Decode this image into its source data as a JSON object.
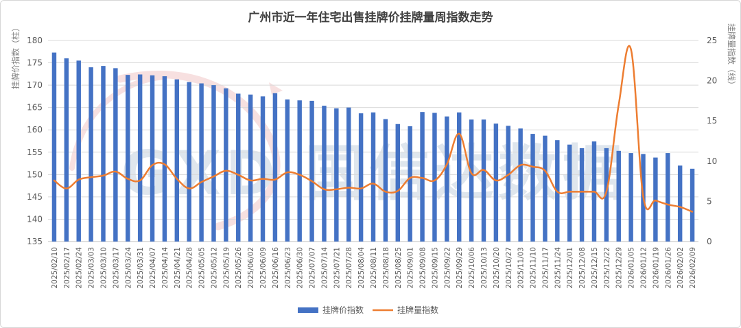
{
  "chart_data": {
    "type": "bar+line",
    "title": "广州市近一年住宅出售挂牌价挂牌量周指数走势",
    "y_left_label": "挂牌价指数（柱）",
    "y_right_label": "挂牌量指数（线）",
    "y_left_range": [
      135,
      180
    ],
    "y_left_ticks": [
      135,
      140,
      145,
      150,
      155,
      160,
      165,
      170,
      175,
      180
    ],
    "y_right_range": [
      0,
      25
    ],
    "y_right_ticks": [
      0,
      5,
      10,
      15,
      20,
      25
    ],
    "categories": [
      "2025/02/10",
      "2025/02/17",
      "2025/02/24",
      "2025/03/03",
      "2025/03/10",
      "2025/03/17",
      "2025/03/24",
      "2025/03/31",
      "2025/04/07",
      "2025/04/14",
      "2025/04/21",
      "2025/04/28",
      "2025/05/05",
      "2025/05/12",
      "2025/05/19",
      "2025/05/26",
      "2025/06/02",
      "2025/06/09",
      "2025/06/16",
      "2025/06/23",
      "2025/06/30",
      "2025/07/07",
      "2025/07/14",
      "2025/07/21",
      "2025/07/28",
      "2025/08/04",
      "2025/08/11",
      "2025/08/18",
      "2025/08/25",
      "2025/09/01",
      "2025/09/08",
      "2025/09/15",
      "2025/09/22",
      "2025/09/29",
      "2025/10/06",
      "2025/10/13",
      "2025/10/20",
      "2025/10/27",
      "2025/11/03",
      "2025/11/10",
      "2025/11/17",
      "2025/11/24",
      "2025/12/01",
      "2025/12/08",
      "2025/12/15",
      "2025/12/22",
      "2025/12/29",
      "2026/01/05",
      "2026/01/12",
      "2026/01/19",
      "2026/01/26",
      "2026/02/02",
      "2026/02/09"
    ],
    "series": [
      {
        "name": "挂牌价指数",
        "type": "bar",
        "axis": "left",
        "color": "#4472c4",
        "values": [
          177.3,
          176.0,
          175.5,
          174.0,
          174.3,
          173.8,
          172.3,
          172.4,
          172.2,
          172.0,
          171.3,
          170.7,
          170.4,
          170.0,
          169.3,
          168.1,
          167.9,
          167.5,
          168.2,
          166.8,
          166.6,
          166.5,
          165.4,
          164.8,
          165.0,
          163.7,
          163.9,
          162.4,
          161.3,
          160.8,
          164.0,
          163.8,
          163.0,
          163.9,
          162.3,
          162.3,
          161.4,
          160.9,
          160.3,
          159.1,
          158.7,
          157.7,
          156.7,
          155.9,
          157.4,
          155.9,
          155.3,
          154.8,
          154.6,
          153.8,
          154.8,
          152.0,
          151.3
        ]
      },
      {
        "name": "挂牌量指数",
        "type": "line",
        "axis": "right",
        "color": "#ed7d31",
        "values": [
          7.6,
          6.6,
          7.7,
          8.0,
          8.2,
          8.7,
          7.8,
          7.6,
          9.5,
          9.6,
          7.8,
          6.6,
          7.4,
          8.1,
          8.8,
          8.3,
          7.6,
          7.8,
          7.7,
          8.6,
          8.3,
          7.5,
          6.5,
          6.5,
          6.7,
          6.6,
          7.2,
          6.2,
          6.3,
          7.9,
          7.9,
          7.6,
          9.6,
          13.4,
          8.5,
          8.9,
          7.6,
          8.3,
          9.5,
          9.3,
          8.8,
          6.2,
          6.2,
          6.2,
          6.2,
          6.2,
          17.0,
          23.9,
          5.6,
          5.1,
          4.6,
          4.3,
          3.7
        ]
      }
    ],
    "legend_position": "bottom",
    "grid": true,
    "watermark": "GXD 国信达数据"
  }
}
